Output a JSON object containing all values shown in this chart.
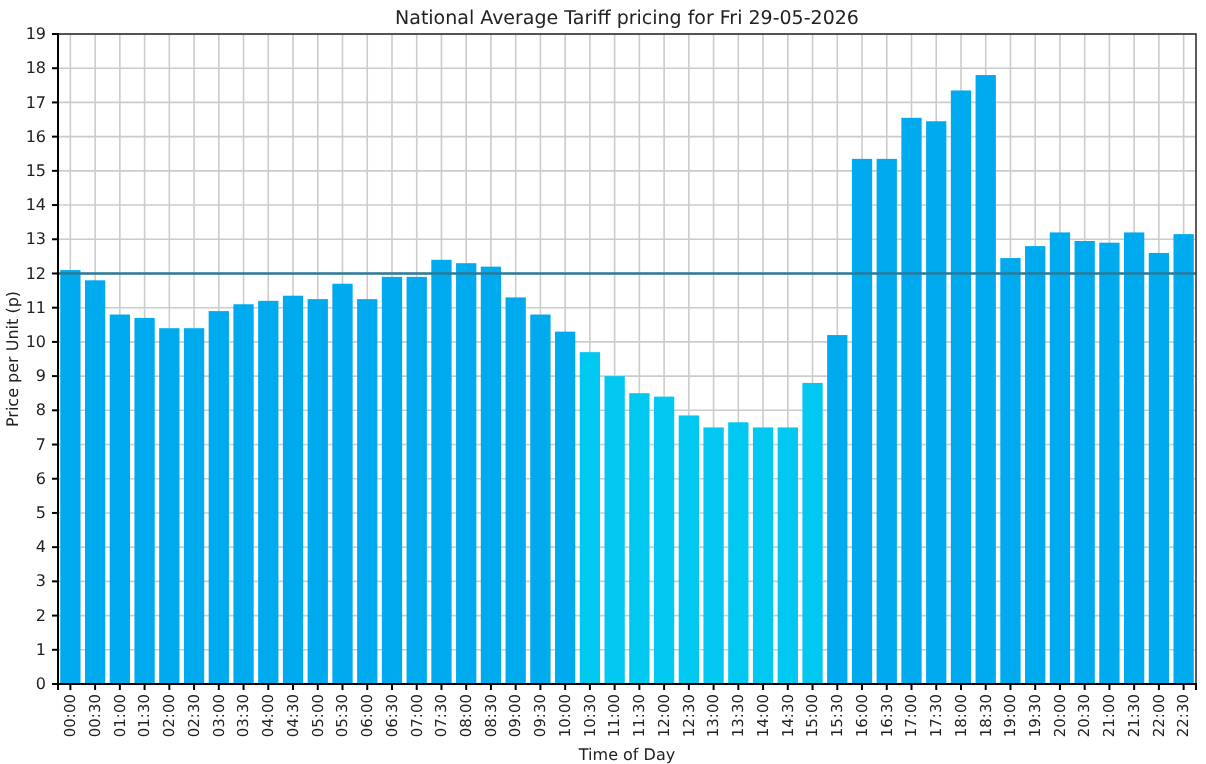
{
  "chart_data": {
    "type": "bar",
    "title": "National Average Tariff pricing for Fri 29-05-2026",
    "xlabel": "Time of Day",
    "ylabel": "Price per Unit (p)",
    "categories": [
      "00:00",
      "00:30",
      "01:00",
      "01:30",
      "02:00",
      "02:30",
      "03:00",
      "03:30",
      "04:00",
      "04:30",
      "05:00",
      "05:30",
      "06:00",
      "06:30",
      "07:00",
      "07:30",
      "08:00",
      "08:30",
      "09:00",
      "09:30",
      "10:00",
      "10:30",
      "11:00",
      "11:30",
      "12:00",
      "12:30",
      "13:00",
      "13:30",
      "14:00",
      "14:30",
      "15:00",
      "15:30",
      "16:00",
      "16:30",
      "17:00",
      "17:30",
      "18:00",
      "18:30",
      "19:00",
      "19:30",
      "20:00",
      "20:30",
      "21:00",
      "21:30",
      "22:00",
      "22:30"
    ],
    "values": [
      12.1,
      11.8,
      10.8,
      10.7,
      10.4,
      10.4,
      10.9,
      11.1,
      11.2,
      11.35,
      11.25,
      11.7,
      11.25,
      11.9,
      11.9,
      12.4,
      12.3,
      12.2,
      11.3,
      10.8,
      10.3,
      9.7,
      9.0,
      8.5,
      8.4,
      7.85,
      7.5,
      7.65,
      7.5,
      7.5,
      8.8,
      10.2,
      15.35,
      15.35,
      16.55,
      16.45,
      17.35,
      17.8,
      12.45,
      12.8,
      13.2,
      12.95,
      12.9,
      13.2,
      12.6,
      13.15
    ],
    "colors": [
      "#00aaee",
      "#00aaee",
      "#00aaee",
      "#00aaee",
      "#00aaee",
      "#00aaee",
      "#00aaee",
      "#00aaee",
      "#00aaee",
      "#00aaee",
      "#00aaee",
      "#00aaee",
      "#00aaee",
      "#00aaee",
      "#00aaee",
      "#00aaee",
      "#00aaee",
      "#00aaee",
      "#00aaee",
      "#00aaee",
      "#00aaee",
      "#00c8f0",
      "#00c8f0",
      "#00c8f0",
      "#00c8f0",
      "#00c8f0",
      "#00c8f0",
      "#00c8f0",
      "#00c8f0",
      "#00c8f0",
      "#00c8f0",
      "#00aaee",
      "#00aaee",
      "#00aaee",
      "#00aaee",
      "#00aaee",
      "#00aaee",
      "#00aaee",
      "#00aaee",
      "#00aaee",
      "#00aaee",
      "#00aaee",
      "#00aaee",
      "#00aaee",
      "#00aaee",
      "#00aaee"
    ],
    "ylim": [
      0,
      19
    ],
    "yticks": [
      0,
      1,
      2,
      3,
      4,
      5,
      6,
      7,
      8,
      9,
      10,
      11,
      12,
      13,
      14,
      15,
      16,
      17,
      18,
      19
    ],
    "grid": true,
    "ref_lines": [
      {
        "axis": "y",
        "value": 12,
        "color": "#2a7a9a"
      }
    ]
  }
}
